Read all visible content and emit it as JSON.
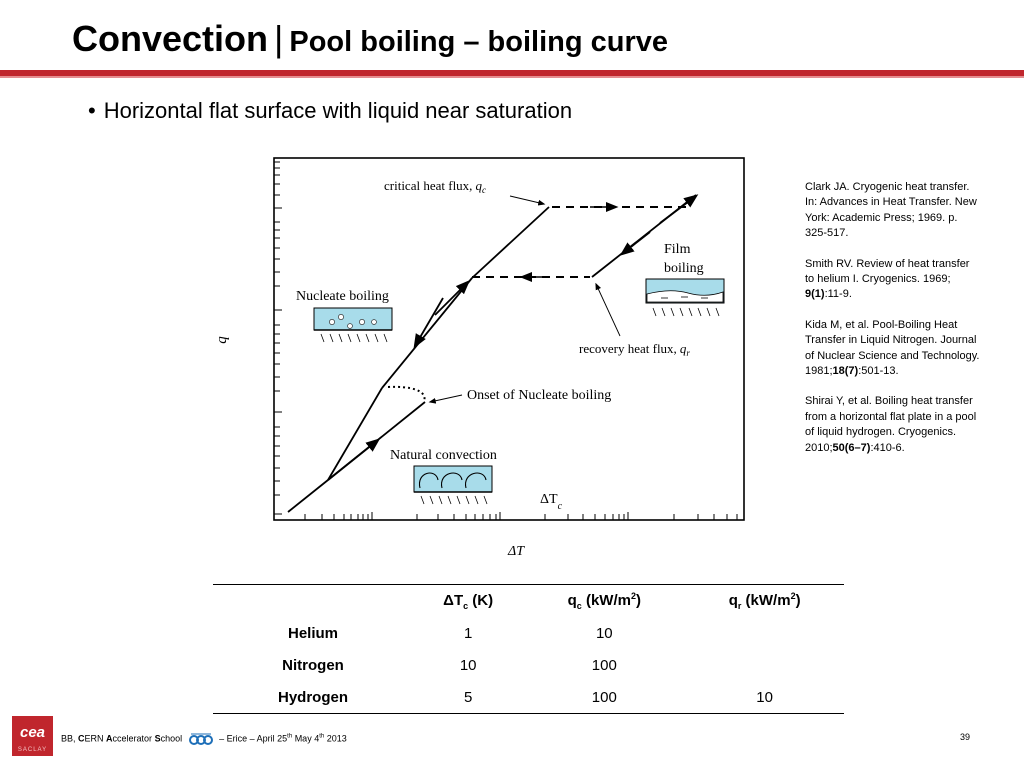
{
  "title": {
    "main": "Convection",
    "separator": "|",
    "sub": "Pool boiling – boiling curve"
  },
  "bullet": "Horizontal flat surface with liquid near saturation",
  "diagram": {
    "y_axis_label": "q",
    "x_axis_label": "ΔT",
    "delta_tc_label": "ΔT",
    "delta_tc_sub": "c",
    "labels": {
      "critical_heat_flux": "critical heat flux,",
      "critical_heat_flux_symbol": "q",
      "critical_heat_flux_sub": "c",
      "film_boiling_1": "Film",
      "film_boiling_2": "boiling",
      "nucleate_boiling": "Nucleate boiling",
      "recovery_heat_flux": "recovery heat flux,",
      "recovery_heat_flux_symbol": "q",
      "recovery_heat_flux_sub": "r",
      "onset_nucleate": "Onset of Nucleate boiling",
      "natural_convection": "Natural convection"
    },
    "colors": {
      "liquid": "#a8dcea",
      "curve": "#000000"
    }
  },
  "references": [
    {
      "text": "Clark JA. Cryogenic heat transfer. In: Advances in Heat Transfer. New York: Academic Press; 1969. p. 325-517."
    },
    {
      "pre": "Smith RV. Review of heat transfer to helium I. Cryogenics. 1969; ",
      "bold": "9(1)",
      "post": ":11-9."
    },
    {
      "pre": "Kida M, et al. Pool-Boiling Heat Transfer in Liquid Nitrogen. Journal of Nuclear Science and Technology. 1981;",
      "bold": "18(7)",
      "post": ":501-13."
    },
    {
      "pre": "Shirai Y, et al. Boiling heat transfer from a horizontal flat plate in a pool of liquid hydrogen. Cryogenics. 2010;",
      "bold": "50(6–7)",
      "post": ":410-6."
    }
  ],
  "table": {
    "headers": {
      "dtc": "ΔT",
      "dtc_sub": "c",
      "dtc_unit": " (K)",
      "qc": "q",
      "qc_sub": "c",
      "qc_unit": " (kW/m",
      "qc_sup": "2",
      "qc_close": ")",
      "qr": "q",
      "qr_sub": "r",
      "qr_unit": " (kW/m",
      "qr_sup": "2",
      "qr_close": ")"
    },
    "rows": [
      {
        "fluid": "Helium",
        "dtc": "1",
        "qc": "10",
        "qr": ""
      },
      {
        "fluid": "Nitrogen",
        "dtc": "10",
        "qc": "100",
        "qr": ""
      },
      {
        "fluid": "Hydrogen",
        "dtc": "5",
        "qc": "100",
        "qr": "10"
      }
    ]
  },
  "footer": {
    "logo_top": "cea",
    "logo_bottom": "SACLAY",
    "b1": "BB, ",
    "c": "C",
    "ern": "ERN ",
    "a": "A",
    "ccelerator": "ccelerator ",
    "s": "S",
    "chool": "chool",
    "event": " – Erice – April 25",
    "sup1": "th",
    "date2": "  May 4",
    "sup2": "th",
    "year": " 2013",
    "page": "39"
  }
}
